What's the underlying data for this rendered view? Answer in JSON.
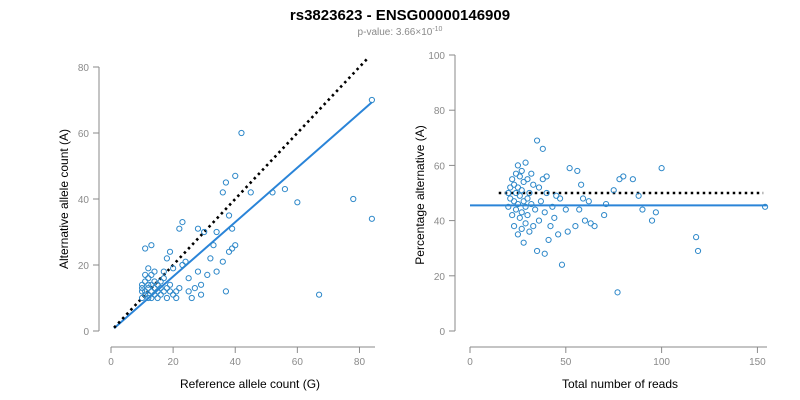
{
  "header": {
    "title": "rs3823623 - ENSG00000146909",
    "subtitle_prefix": "p-value: 3.66×10",
    "subtitle_exponent": "-10"
  },
  "colors": {
    "points": "#2e88c9",
    "fit_line": "#2a84d8",
    "reference_line": "#000000",
    "axis": "#8a8a8a"
  },
  "chart_data": [
    {
      "type": "scatter",
      "title": "",
      "xlabel": "Reference allele count (G)",
      "ylabel": "Alternative allele count (A)",
      "xlim": [
        0,
        85
      ],
      "ylim": [
        0,
        80
      ],
      "xticks": [
        0,
        20,
        40,
        60,
        80
      ],
      "yticks": [
        0,
        20,
        40,
        60,
        80
      ],
      "grid": false,
      "reference_line": {
        "style": "dotted",
        "slope": 1,
        "intercept": 0,
        "x_range": [
          1,
          83
        ]
      },
      "fit_line": {
        "style": "solid",
        "slope": 0.825,
        "intercept": 0,
        "x_range": [
          1,
          84
        ]
      },
      "points": [
        [
          10,
          10
        ],
        [
          10,
          12
        ],
        [
          10,
          13
        ],
        [
          10,
          14
        ],
        [
          11,
          11
        ],
        [
          11,
          12
        ],
        [
          11,
          15
        ],
        [
          11,
          17
        ],
        [
          11,
          25
        ],
        [
          12,
          10
        ],
        [
          12,
          11
        ],
        [
          12,
          13
        ],
        [
          12,
          14
        ],
        [
          12,
          16
        ],
        [
          12,
          19
        ],
        [
          13,
          10
        ],
        [
          13,
          12
        ],
        [
          13,
          14
        ],
        [
          13,
          17
        ],
        [
          13,
          26
        ],
        [
          14,
          11
        ],
        [
          14,
          13
        ],
        [
          14,
          15
        ],
        [
          14,
          18
        ],
        [
          15,
          10
        ],
        [
          15,
          12
        ],
        [
          15,
          14
        ],
        [
          16,
          11
        ],
        [
          16,
          13
        ],
        [
          16,
          15
        ],
        [
          17,
          12
        ],
        [
          17,
          16
        ],
        [
          17,
          18
        ],
        [
          18,
          10
        ],
        [
          18,
          13
        ],
        [
          18,
          22
        ],
        [
          19,
          12
        ],
        [
          19,
          14
        ],
        [
          19,
          24
        ],
        [
          20,
          11
        ],
        [
          20,
          19
        ],
        [
          21,
          12
        ],
        [
          21,
          10
        ],
        [
          22,
          13
        ],
        [
          22,
          31
        ],
        [
          23,
          20
        ],
        [
          23,
          33
        ],
        [
          24,
          21
        ],
        [
          25,
          16
        ],
        [
          25,
          12
        ],
        [
          26,
          10
        ],
        [
          27,
          13
        ],
        [
          28,
          18
        ],
        [
          28,
          31
        ],
        [
          29,
          11
        ],
        [
          29,
          14
        ],
        [
          30,
          30
        ],
        [
          31,
          17
        ],
        [
          32,
          22
        ],
        [
          33,
          26
        ],
        [
          34,
          18
        ],
        [
          34,
          30
        ],
        [
          36,
          21
        ],
        [
          36,
          42
        ],
        [
          37,
          45
        ],
        [
          37,
          12
        ],
        [
          38,
          24
        ],
        [
          38,
          35
        ],
        [
          39,
          31
        ],
        [
          39,
          25
        ],
        [
          40,
          26
        ],
        [
          40,
          47
        ],
        [
          42,
          60
        ],
        [
          45,
          42
        ],
        [
          52,
          42
        ],
        [
          56,
          43
        ],
        [
          60,
          39
        ],
        [
          67,
          11
        ],
        [
          78,
          40
        ],
        [
          84,
          34
        ],
        [
          84,
          70
        ]
      ]
    },
    {
      "type": "scatter",
      "title": "",
      "xlabel": "Total number of reads",
      "ylabel": "Percentage alternative (A)",
      "xlim": [
        0,
        155
      ],
      "ylim": [
        0,
        100
      ],
      "xticks": [
        0,
        50,
        100,
        150
      ],
      "yticks": [
        0,
        20,
        40,
        60,
        80,
        100
      ],
      "grid": false,
      "reference_line": {
        "style": "dotted",
        "y": 50,
        "x_range": [
          15,
          153
        ]
      },
      "fit_line": {
        "style": "solid",
        "y": 45.5,
        "x_range": [
          0,
          155
        ]
      },
      "points": [
        [
          20,
          50
        ],
        [
          20,
          45
        ],
        [
          21,
          52
        ],
        [
          21,
          48
        ],
        [
          22,
          55
        ],
        [
          22,
          42
        ],
        [
          23,
          53
        ],
        [
          23,
          47
        ],
        [
          23,
          38
        ],
        [
          24,
          57
        ],
        [
          24,
          50
        ],
        [
          24,
          44
        ],
        [
          25,
          60
        ],
        [
          25,
          52
        ],
        [
          25,
          46
        ],
        [
          25,
          35
        ],
        [
          26,
          56
        ],
        [
          26,
          49
        ],
        [
          26,
          41
        ],
        [
          27,
          58
        ],
        [
          27,
          51
        ],
        [
          27,
          43
        ],
        [
          27,
          37
        ],
        [
          28,
          54
        ],
        [
          28,
          47
        ],
        [
          28,
          32
        ],
        [
          29,
          61
        ],
        [
          29,
          45
        ],
        [
          29,
          39
        ],
        [
          30,
          55
        ],
        [
          30,
          48
        ],
        [
          30,
          42
        ],
        [
          31,
          50
        ],
        [
          31,
          36
        ],
        [
          32,
          57
        ],
        [
          32,
          46
        ],
        [
          33,
          53
        ],
        [
          33,
          38
        ],
        [
          34,
          44
        ],
        [
          35,
          69
        ],
        [
          35,
          29
        ],
        [
          36,
          52
        ],
        [
          36,
          40
        ],
        [
          37,
          47
        ],
        [
          38,
          66
        ],
        [
          38,
          55
        ],
        [
          39,
          43
        ],
        [
          39,
          28
        ],
        [
          40,
          56
        ],
        [
          40,
          50
        ],
        [
          41,
          33
        ],
        [
          42,
          38
        ],
        [
          43,
          45
        ],
        [
          44,
          41
        ],
        [
          45,
          49
        ],
        [
          46,
          35
        ],
        [
          47,
          48
        ],
        [
          48,
          24
        ],
        [
          50,
          44
        ],
        [
          51,
          36
        ],
        [
          52,
          59
        ],
        [
          55,
          38
        ],
        [
          56,
          58
        ],
        [
          57,
          44
        ],
        [
          58,
          53
        ],
        [
          59,
          48
        ],
        [
          60,
          40
        ],
        [
          62,
          47
        ],
        [
          63,
          39
        ],
        [
          65,
          38
        ],
        [
          70,
          42
        ],
        [
          71,
          46
        ],
        [
          75,
          51
        ],
        [
          77,
          14
        ],
        [
          78,
          55
        ],
        [
          80,
          56
        ],
        [
          85,
          55
        ],
        [
          88,
          49
        ],
        [
          90,
          44
        ],
        [
          95,
          40
        ],
        [
          97,
          43
        ],
        [
          100,
          59
        ],
        [
          118,
          34
        ],
        [
          119,
          29
        ],
        [
          154,
          45
        ]
      ]
    }
  ]
}
